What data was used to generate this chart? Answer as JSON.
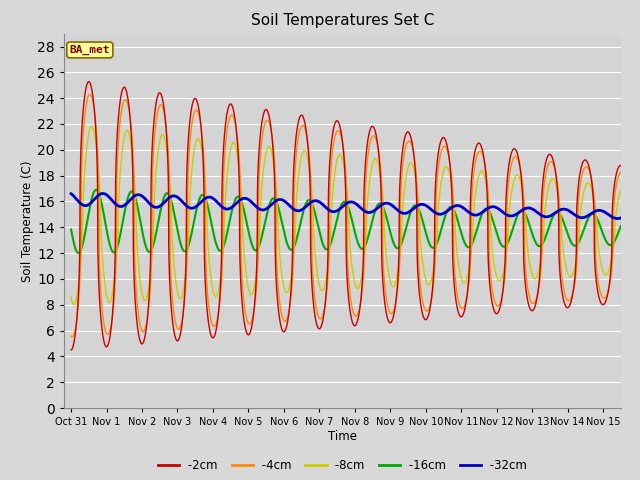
{
  "title": "Soil Temperatures Set C",
  "xlabel": "Time",
  "ylabel": "Soil Temperature (C)",
  "ylim": [
    0,
    29
  ],
  "yticks": [
    0,
    2,
    4,
    6,
    8,
    10,
    12,
    14,
    16,
    18,
    20,
    22,
    24,
    26,
    28
  ],
  "background_color": "#d8d8d8",
  "plot_bg_color": "#d4d4d4",
  "grid_color": "#ffffff",
  "annotation_text": "BA_met",
  "annotation_bg": "#ffff99",
  "annotation_border": "#886600",
  "annotation_text_color": "#880000",
  "series": {
    "-2cm": {
      "color": "#cc0000",
      "lw": 1.0
    },
    "-4cm": {
      "color": "#ff8800",
      "lw": 1.0
    },
    "-8cm": {
      "color": "#cccc00",
      "lw": 1.0
    },
    "-16cm": {
      "color": "#00aa00",
      "lw": 1.5
    },
    "-32cm": {
      "color": "#0000cc",
      "lw": 2.0
    }
  },
  "n_points": 5000
}
